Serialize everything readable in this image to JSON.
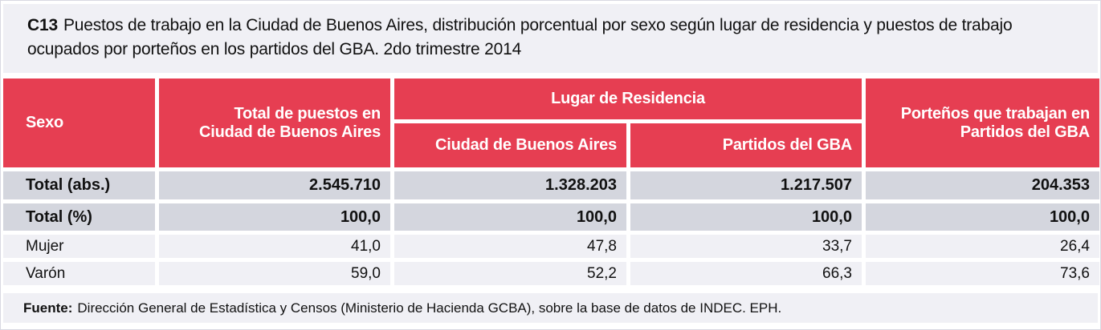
{
  "title": {
    "code": "C13",
    "text": "Puestos de trabajo en la Ciudad de Buenos Aires, distribución porcentual por sexo según lugar de residencia y puestos de trabajo ocupados por porteños en los partidos del GBA. 2do trimestre 2014"
  },
  "table": {
    "header": {
      "sexo": "Sexo",
      "total_caba": "Total de puestos en\nCiudad de Buenos Aires",
      "lugar_residencia": "Lugar de Residencia",
      "sub_caba": "Ciudad de Buenos Aires",
      "sub_gba": "Partidos del GBA",
      "portenos_gba": "Porteños que trabajan en\nPartidos del GBA"
    },
    "rows": [
      {
        "label": "Total (abs.)",
        "values": [
          "2.545.710",
          "1.328.203",
          "1.217.507",
          "204.353"
        ]
      },
      {
        "label": "Total (%)",
        "values": [
          "100,0",
          "100,0",
          "100,0",
          "100,0"
        ]
      },
      {
        "label": "Mujer",
        "values": [
          "41,0",
          "47,8",
          "33,7",
          "26,4"
        ]
      },
      {
        "label": "Varón",
        "values": [
          "59,0",
          "52,2",
          "66,3",
          "73,6"
        ]
      }
    ]
  },
  "footer": {
    "label": "Fuente:",
    "text": "Dirección General de Estadística y Censos (Ministerio de Hacienda GCBA), sobre la base de datos de INDEC. EPH."
  },
  "colors": {
    "accent_red": "#e63e52",
    "row_dark": "#d4d6de",
    "row_light": "#f0f0f5",
    "band_bg": "#f0f0f5",
    "header_text": "#ffffff"
  },
  "chart_data": {
    "type": "table",
    "title": "C13 Puestos de trabajo en la Ciudad de Buenos Aires, distribución porcentual por sexo según lugar de residencia y puestos de trabajo ocupados por porteños en los partidos del GBA. 2do trimestre 2014",
    "row_header": "Sexo",
    "columns": [
      "Total de puestos en Ciudad de Buenos Aires",
      "Lugar de Residencia - Ciudad de Buenos Aires",
      "Lugar de Residencia - Partidos del GBA",
      "Porteños que trabajan en Partidos del GBA"
    ],
    "rows": [
      {
        "label": "Total (abs.)",
        "values": [
          2545710,
          1328203,
          1217507,
          204353
        ]
      },
      {
        "label": "Total (%)",
        "values": [
          100.0,
          100.0,
          100.0,
          100.0
        ]
      },
      {
        "label": "Mujer",
        "values": [
          41.0,
          47.8,
          33.7,
          26.4
        ]
      },
      {
        "label": "Varón",
        "values": [
          59.0,
          52.2,
          66.3,
          73.6
        ]
      }
    ],
    "source": "Fuente: Dirección General de Estadística y Censos (Ministerio de Hacienda GCBA), sobre la base de datos de INDEC. EPH."
  }
}
